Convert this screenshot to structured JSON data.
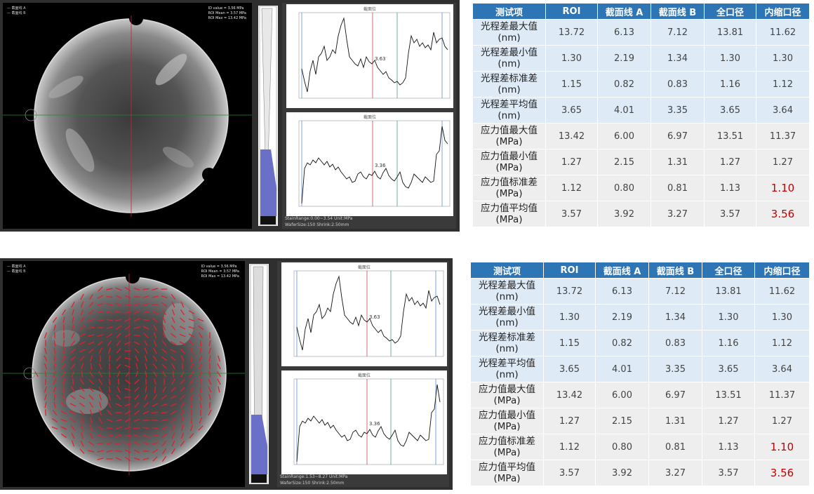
{
  "panels": [
    {
      "legend_left": [
        "— 截面线 A",
        "— 截面线 B"
      ],
      "legend_right": [
        "ID value = 3.56 MPa",
        "ROI Mean = 3.57 MPa",
        "ROI Max = 13.42 MPa"
      ],
      "status_line1": "StainRange:0.00~3.54  Unit:MPa",
      "status_line2": "WaferSize:150  Shrink:2.50mm",
      "plot_top_title": "截面位",
      "plot_bottom_title": "截面位",
      "plot_top_value": "3.63",
      "plot_bottom_value": "3.36"
    },
    {
      "legend_left": [
        "— 截面线 A",
        "— 截面线 B"
      ],
      "legend_right": [
        "ID value = 3.56 MPa",
        "ROI Mean = 3.57 MPa",
        "ROI Max = 13.42 MPa"
      ],
      "status_line1": "StainRange:1.53~8.27  Unit:MPa",
      "status_line2": "WaferSize:150  Shrink:2.50mm",
      "plot_top_title": "截面位",
      "plot_bottom_title": "截面位",
      "plot_top_value": "3.63",
      "plot_bottom_value": "3.36"
    }
  ],
  "table": {
    "headers": [
      "测试项",
      "ROI",
      "截面线 A",
      "截面线 B",
      "全口径",
      "内缩口径"
    ],
    "rows": [
      {
        "label1": "光程差最大值",
        "label2": "(nm)",
        "values": [
          "13.72",
          "6.13",
          "7.12",
          "13.81",
          "11.62"
        ]
      },
      {
        "label1": "光程差最小值",
        "label2": "(nm)",
        "values": [
          "1.30",
          "2.19",
          "1.34",
          "1.30",
          "1.30"
        ]
      },
      {
        "label1": "光程差标准差",
        "label2": "(nm)",
        "values": [
          "1.15",
          "0.82",
          "0.83",
          "1.16",
          "1.12"
        ]
      },
      {
        "label1": "光程差平均值",
        "label2": "(nm)",
        "values": [
          "3.65",
          "4.01",
          "3.35",
          "3.65",
          "3.64"
        ]
      },
      {
        "label1": "应力值最大值",
        "label2": "(MPa)",
        "values": [
          "13.42",
          "6.00",
          "6.97",
          "13.51",
          "11.37"
        ]
      },
      {
        "label1": "应力值最小值",
        "label2": "(MPa)",
        "values": [
          "1.27",
          "2.15",
          "1.31",
          "1.27",
          "1.27"
        ]
      },
      {
        "label1": "应力值标准差",
        "label2": "(MPa)",
        "values": [
          "1.12",
          "0.80",
          "0.81",
          "1.13",
          "1.10"
        ]
      },
      {
        "label1": "应力值平均值",
        "label2": "(MPa)",
        "values": [
          "3.57",
          "3.92",
          "3.27",
          "3.57",
          "3.56"
        ]
      }
    ],
    "highlight_color": "#c00000",
    "header_color": "#2e75b6"
  }
}
